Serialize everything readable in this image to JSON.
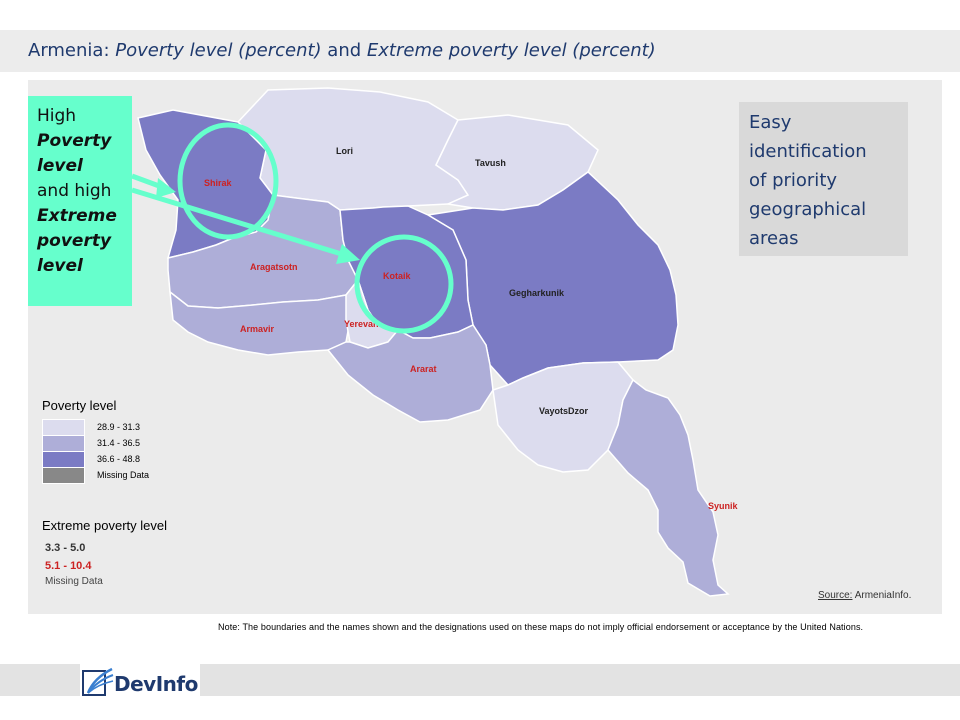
{
  "header": {
    "title_country": "Armenia: ",
    "title_part1": "Poverty level (percent)",
    "title_and": " and ",
    "title_part2": "Extreme poverty level (percent)"
  },
  "callout_left": {
    "line1": "High",
    "line2": "Poverty",
    "line3": "level",
    "line4": "and high",
    "line5": "Extreme",
    "line6": "poverty",
    "line7": "level"
  },
  "callout_right": {
    "line1": "Easy",
    "line2": "identification",
    "line3": "of priority",
    "line4": "geographical",
    "line5": "areas"
  },
  "regions": [
    {
      "name": "Lori",
      "poverty_class": "28.9 - 31.3",
      "extreme_class": "3.3 - 5.0"
    },
    {
      "name": "Tavush",
      "poverty_class": "28.9 - 31.3",
      "extreme_class": "3.3 - 5.0"
    },
    {
      "name": "Shirak",
      "poverty_class": "36.6 - 48.8",
      "extreme_class": "5.1 - 10.4"
    },
    {
      "name": "Aragatsotn",
      "poverty_class": "31.4 - 36.5",
      "extreme_class": "5.1 - 10.4"
    },
    {
      "name": "Kotaik",
      "poverty_class": "36.6 - 48.8",
      "extreme_class": "5.1 - 10.4"
    },
    {
      "name": "Gegharkunik",
      "poverty_class": "36.6 - 48.8",
      "extreme_class": "3.3 - 5.0"
    },
    {
      "name": "Armavir",
      "poverty_class": "31.4 - 36.5",
      "extreme_class": "5.1 - 10.4"
    },
    {
      "name": "Yerevan",
      "poverty_class": "28.9 - 31.3",
      "extreme_class": "5.1 - 10.4"
    },
    {
      "name": "Ararat",
      "poverty_class": "31.4 - 36.5",
      "extreme_class": "5.1 - 10.4"
    },
    {
      "name": "VayotsDzor",
      "poverty_class": "28.9 - 31.3",
      "extreme_class": "3.3 - 5.0"
    },
    {
      "name": "Syunik",
      "poverty_class": "31.4 - 36.5",
      "extreme_class": "5.1 - 10.4"
    }
  ],
  "legend_poverty": {
    "title": "Poverty level",
    "items": [
      {
        "label": "28.9 - 31.3",
        "color": "#dcdcee"
      },
      {
        "label": "31.4 - 36.5",
        "color": "#aeaed8"
      },
      {
        "label": "36.6 - 48.8",
        "color": "#7b7bc4"
      },
      {
        "label": "Missing Data",
        "color": "#888888"
      }
    ]
  },
  "legend_extreme": {
    "title": "Extreme poverty level",
    "items": [
      {
        "label": "3.3 - 5.0",
        "color": "#333333"
      },
      {
        "label": "5.1 - 10.4",
        "color": "#cc2222"
      }
    ],
    "missing": "Missing Data"
  },
  "colors": {
    "highlight": "#66ffcc",
    "title_text": "#1f3a6e"
  },
  "source": {
    "label": "Source:",
    "text": " ArmeniaInfo."
  },
  "note": "Note: The boundaries and the names shown and the designations used on these maps do not imply official endorsement or acceptance by the United Nations.",
  "footer": {
    "logo_text": "DevInfo"
  }
}
